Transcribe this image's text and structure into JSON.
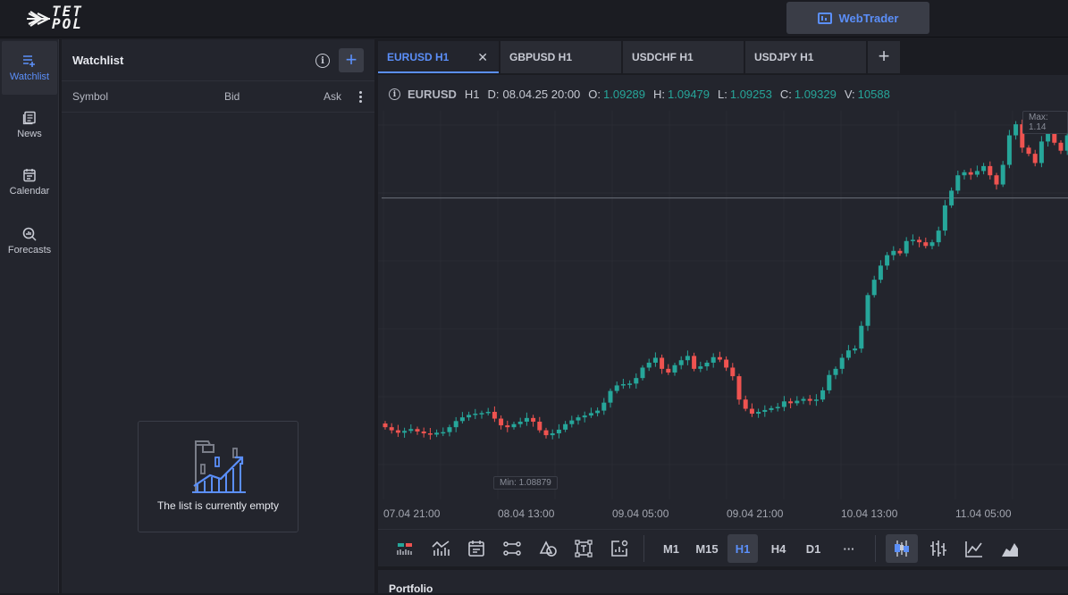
{
  "brand": {
    "logo_line1": "TET",
    "logo_line2": "POL"
  },
  "header": {
    "webtrader_label": "WebTrader"
  },
  "nav": [
    {
      "label": "Watchlist",
      "icon": "watchlist-icon",
      "active": true
    },
    {
      "label": "News",
      "icon": "news-icon"
    },
    {
      "label": "Calendar",
      "icon": "calendar-icon"
    },
    {
      "label": "Forecasts",
      "icon": "forecasts-icon"
    }
  ],
  "watchlist": {
    "title": "Watchlist",
    "columns": {
      "symbol": "Symbol",
      "bid": "Bid",
      "ask": "Ask"
    },
    "empty_text": "The list is currently empty"
  },
  "tabs": [
    {
      "label": "EURUSD H1",
      "active": true
    },
    {
      "label": "GBPUSD H1"
    },
    {
      "label": "USDCHF H1"
    },
    {
      "label": "USDJPY H1"
    }
  ],
  "legend": {
    "symbol": "EURUSD",
    "timeframe": "H1",
    "date_label": "D:",
    "date": "08.04.25 20:00",
    "open_label": "O:",
    "open": "1.09289",
    "high_label": "H:",
    "high": "1.09479",
    "low_label": "L:",
    "low": "1.09253",
    "close_label": "C:",
    "close": "1.09329",
    "volume_label": "V:",
    "volume": "10588"
  },
  "tags": {
    "max": "Max: 1.14",
    "min": "Min: 1.08879"
  },
  "timeframes": [
    "M1",
    "M15",
    "H1",
    "H4",
    "D1"
  ],
  "active_timeframe": "H1",
  "more_label": "···",
  "portfolio": {
    "title": "Portfolio"
  },
  "colors": {
    "up": "#26a69a",
    "down": "#ef5350",
    "accent": "#5b8ff9"
  },
  "chart_data": {
    "type": "candlestick",
    "symbol": "EURUSD",
    "timeframe": "H1",
    "x_tick_labels": [
      "07.04 21:00",
      "08.04 13:00",
      "09.04 05:00",
      "09.04 21:00",
      "10.04 13:00",
      "11.04 05:00"
    ],
    "min_label": "Min: 1.08879",
    "max_label": "Max: 1.14",
    "closes": [
      1.0935,
      1.093,
      1.0926,
      1.0929,
      1.0932,
      1.0928,
      1.0925,
      1.0923,
      1.0926,
      1.0927,
      1.0935,
      1.0945,
      1.0951,
      1.0955,
      1.0957,
      1.0958,
      1.096,
      1.0949,
      1.0938,
      1.0935,
      1.094,
      1.0944,
      1.095,
      1.0944,
      1.093,
      1.0922,
      1.0925,
      1.0931,
      1.094,
      1.0946,
      1.0951,
      1.0954,
      1.0958,
      1.0962,
      1.0975,
      1.0994,
      1.1003,
      1.1005,
      1.1006,
      1.1015,
      1.1032,
      1.104,
      1.1048,
      1.103,
      1.1024,
      1.1036,
      1.1044,
      1.1051,
      1.103,
      1.1034,
      1.104,
      1.1049,
      1.1045,
      1.1032,
      1.1018,
      1.098,
      1.0965,
      1.0957,
      1.096,
      1.0963,
      1.0966,
      1.0968,
      1.0977,
      1.0974,
      1.0978,
      1.0981,
      1.0978,
      1.098,
      1.0995,
      1.102,
      1.103,
      1.1048,
      1.106,
      1.1063,
      1.11,
      1.115,
      1.1175,
      1.1198,
      1.1215,
      1.1222,
      1.1218,
      1.1238,
      1.124,
      1.1236,
      1.123,
      1.1236,
      1.1255,
      1.1296,
      1.132,
      1.1345,
      1.135,
      1.1346,
      1.1352,
      1.136,
      1.1345,
      1.133,
      1.1362,
      1.141,
      1.1428,
      1.139,
      1.138,
      1.1365,
      1.14,
      1.142,
      1.1398,
      1.1385,
      1.141,
      1.1432
    ]
  }
}
